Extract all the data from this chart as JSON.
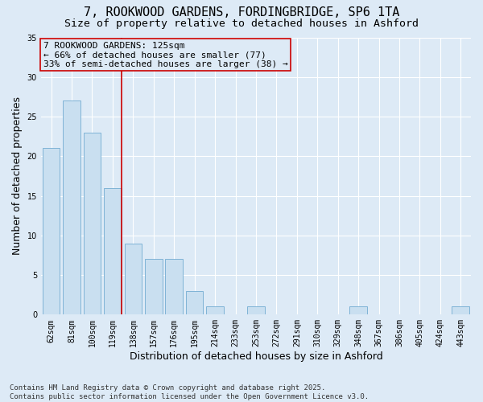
{
  "title_line1": "7, ROOKWOOD GARDENS, FORDINGBRIDGE, SP6 1TA",
  "title_line2": "Size of property relative to detached houses in Ashford",
  "xlabel": "Distribution of detached houses by size in Ashford",
  "ylabel": "Number of detached properties",
  "categories": [
    "62sqm",
    "81sqm",
    "100sqm",
    "119sqm",
    "138sqm",
    "157sqm",
    "176sqm",
    "195sqm",
    "214sqm",
    "233sqm",
    "253sqm",
    "272sqm",
    "291sqm",
    "310sqm",
    "329sqm",
    "348sqm",
    "367sqm",
    "386sqm",
    "405sqm",
    "424sqm",
    "443sqm"
  ],
  "values": [
    21,
    27,
    23,
    16,
    9,
    7,
    7,
    3,
    1,
    0,
    1,
    0,
    0,
    0,
    0,
    1,
    0,
    0,
    0,
    0,
    1
  ],
  "bar_color": "#c9dff0",
  "bar_edge_color": "#7fb3d6",
  "vline_color": "#cc0000",
  "ylim": [
    0,
    35
  ],
  "yticks": [
    0,
    5,
    10,
    15,
    20,
    25,
    30,
    35
  ],
  "annotation_text": "7 ROOKWOOD GARDENS: 125sqm\n← 66% of detached houses are smaller (77)\n33% of semi-detached houses are larger (38) →",
  "annotation_box_edge_color": "#cc0000",
  "background_color": "#ddeaf6",
  "grid_color": "#ffffff",
  "footer_text": "Contains HM Land Registry data © Crown copyright and database right 2025.\nContains public sector information licensed under the Open Government Licence v3.0.",
  "title_fontsize": 11,
  "subtitle_fontsize": 9.5,
  "axis_label_fontsize": 9,
  "tick_fontsize": 7,
  "annotation_fontsize": 8
}
